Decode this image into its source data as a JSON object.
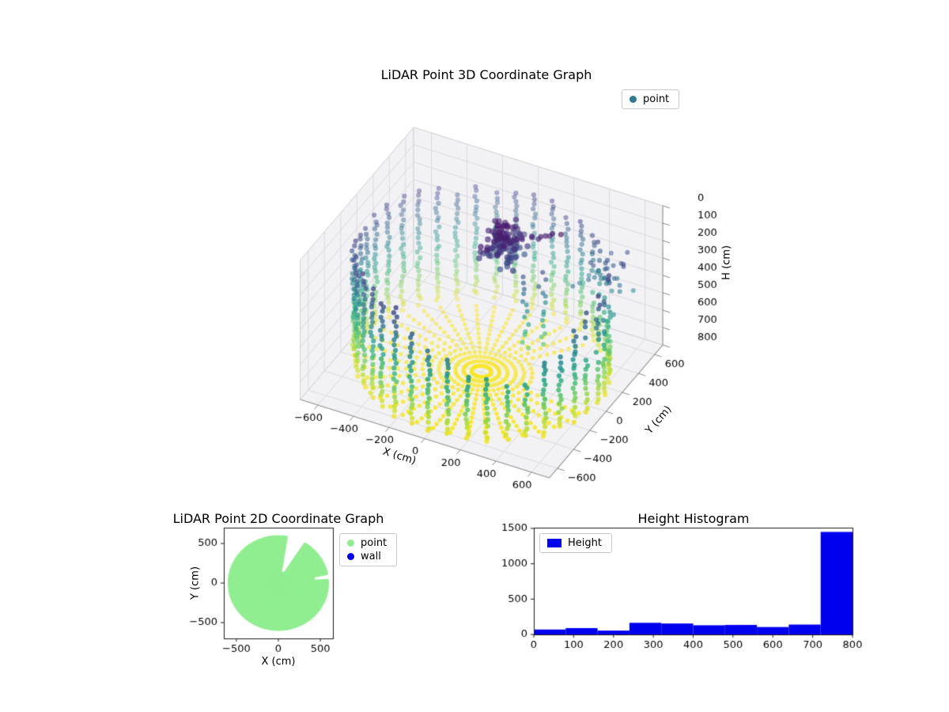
{
  "figure": {
    "background": "#ffffff"
  },
  "chart_data": [
    {
      "id": "lidar-3d",
      "type": "scatter",
      "projection": "3d",
      "title": "LiDAR Point 3D Coordinate Graph",
      "xlabel": "X (cm)",
      "ylabel": "Y (cm)",
      "zlabel": "H (cm)",
      "xlim": [
        -700,
        700
      ],
      "ylim": [
        -700,
        700
      ],
      "hlim": [
        0,
        800
      ],
      "h_axis_inverted": true,
      "xticks": [
        -600,
        -400,
        -200,
        0,
        200,
        400,
        600
      ],
      "yticks": [
        -600,
        -400,
        -200,
        0,
        200,
        400,
        600
      ],
      "hticks": [
        0,
        100,
        200,
        300,
        400,
        500,
        600,
        700,
        800
      ],
      "view": {
        "elev": 30,
        "azim": -60
      },
      "legend": [
        {
          "label": "point",
          "color": "#2d798e"
        }
      ],
      "colormap": "viridis",
      "color_encoding": "height H: 0 cm = dark purple, 800 cm = yellow",
      "point_cloud": {
        "wall_ring": {
          "radius_cm": 650,
          "columns": 40,
          "h_top_cm": 130,
          "h_bottom_cm": 800,
          "h_step_cm": 27,
          "front_gap_top_cm": 470
        },
        "floor_rays": {
          "h_cm": 795,
          "rays": 40,
          "r_min_cm": 50,
          "r_max_cm": 630,
          "r_step_cm": 42,
          "shadow_wedge_deg": [
            -2,
            52
          ]
        },
        "object_cluster": {
          "center_cm": [
            60,
            150,
            115
          ],
          "spread_cm": [
            55,
            70,
            50
          ],
          "count": 110
        },
        "cluster_arm": {
          "from_cm": [
            60,
            150,
            115
          ],
          "to_cm": [
            310,
            270,
            55
          ],
          "count": 14
        },
        "hanging_columns": {
          "base_xy_cm": [
            [
              230,
              40
            ],
            [
              290,
              110
            ]
          ],
          "h_range_cm": [
            200,
            620
          ],
          "h_step_cm": 34
        },
        "scatter_noise": {
          "count": 24,
          "x_range_cm": [
            380,
            640
          ],
          "y_range_cm": [
            220,
            500
          ],
          "h_range_cm": [
            170,
            400
          ]
        }
      }
    },
    {
      "id": "lidar-2d",
      "type": "scatter",
      "title": "LiDAR Point 2D Coordinate Graph",
      "xlabel": "X (cm)",
      "ylabel": "Y (cm)",
      "xlim": [
        -650,
        650
      ],
      "ylim": [
        -700,
        700
      ],
      "xticks": [
        -500,
        0,
        500
      ],
      "yticks": [
        -500,
        0,
        500
      ],
      "legend": [
        {
          "label": "point",
          "color": "#90ee90"
        },
        {
          "label": "wall",
          "color": "#0000ee"
        }
      ],
      "disc": {
        "center_cm": [
          0,
          0
        ],
        "radius_cm": 600,
        "color": "#90ee90"
      },
      "gaps": [
        {
          "type": "wedge",
          "angle_deg": [
            60,
            78
          ],
          "r_range_cm": [
            150,
            650
          ]
        },
        {
          "type": "notch",
          "angle_deg": [
            4,
            10
          ],
          "r_range_cm": [
            420,
            650
          ]
        }
      ]
    },
    {
      "id": "height-histogram",
      "type": "bar",
      "title": "Height Histogram",
      "legend": [
        {
          "label": "Height",
          "color": "#0000ee"
        }
      ],
      "bar_color": "#0000ee",
      "bin_edges": [
        0,
        80,
        160,
        240,
        320,
        400,
        480,
        560,
        640,
        720,
        800
      ],
      "counts": [
        70,
        90,
        55,
        165,
        155,
        130,
        135,
        105,
        140,
        1450
      ],
      "xlim": [
        0,
        800
      ],
      "ylim": [
        0,
        1510
      ],
      "xticks": [
        0,
        100,
        200,
        300,
        400,
        500,
        600,
        700,
        800
      ],
      "yticks": [
        0,
        500,
        1000,
        1500
      ]
    }
  ]
}
